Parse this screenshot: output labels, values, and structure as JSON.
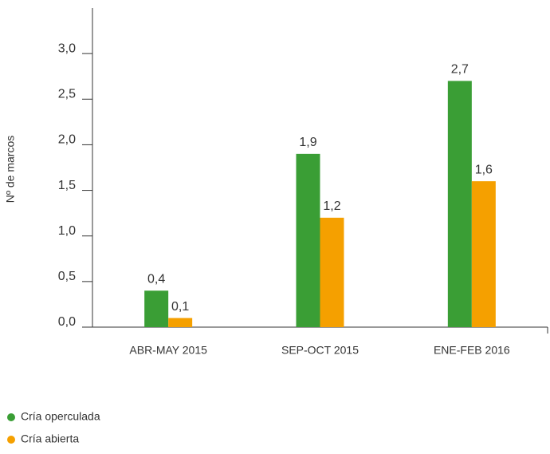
{
  "chart_data": {
    "type": "bar",
    "y_label": "Nº de marcos",
    "categories": [
      "ABR-MAY 2015",
      "SEP-OCT 2015",
      "ENE-FEB 2016"
    ],
    "series": [
      {
        "name": "Cría operculada",
        "color": "#3a9e35",
        "values": [
          0.4,
          1.9,
          2.7
        ],
        "value_labels": [
          "0,4",
          "1,9",
          "2,7"
        ]
      },
      {
        "name": "Cría abierta",
        "color": "#f5a000",
        "values": [
          0.1,
          1.2,
          1.6
        ],
        "value_labels": [
          "0,1",
          "1,2",
          "1,6"
        ]
      }
    ],
    "ylim": [
      0,
      3.5
    ],
    "yticks": [
      {
        "value": 0,
        "label": "0,0"
      },
      {
        "value": 0.5,
        "label": "0,5"
      },
      {
        "value": 1,
        "label": "1,0"
      },
      {
        "value": 1.5,
        "label": "1,5"
      },
      {
        "value": 2,
        "label": "2,0"
      },
      {
        "value": 2.5,
        "label": "2,5"
      },
      {
        "value": 3,
        "label": "3,0"
      }
    ],
    "grid": false,
    "legend": "bottom-left"
  }
}
